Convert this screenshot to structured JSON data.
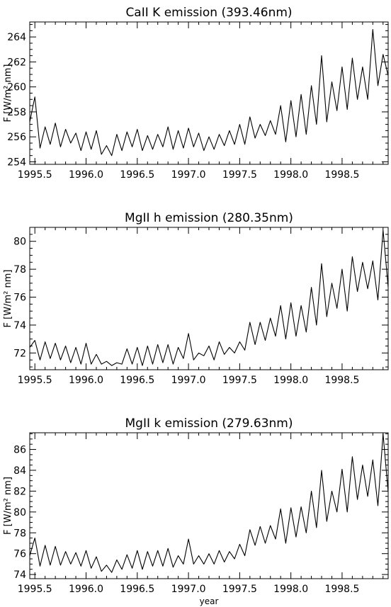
{
  "chart_data": [
    {
      "type": "line",
      "title": "CaII K  emission (393.46nm)",
      "xlabel": "",
      "ylabel": "F [W/m² nm]",
      "xlim": [
        1995.45,
        1998.95
      ],
      "ylim": [
        253.8,
        265.2
      ],
      "x_ticks": [
        "1995.5",
        "1996.0",
        "1996.5",
        "1997.0",
        "1997.5",
        "1998.0",
        "1998.5"
      ],
      "y_ticks": [
        "254",
        "256",
        "258",
        "260",
        "262",
        "264"
      ],
      "series": [
        {
          "x": [
            1995.45,
            1995.5,
            1995.55,
            1995.6,
            1995.65,
            1995.7,
            1995.75,
            1995.8,
            1995.85,
            1995.9,
            1995.95,
            1996.0,
            1996.05,
            1996.1,
            1996.15,
            1996.2,
            1996.25,
            1996.3,
            1996.35,
            1996.4,
            1996.45,
            1996.5,
            1996.55,
            1996.6,
            1996.65,
            1996.7,
            1996.75,
            1996.8,
            1996.85,
            1996.9,
            1996.95,
            1997.0,
            1997.05,
            1997.1,
            1997.15,
            1997.2,
            1997.25,
            1997.3,
            1997.35,
            1997.4,
            1997.45,
            1997.5,
            1997.55,
            1997.6,
            1997.65,
            1997.7,
            1997.75,
            1997.8,
            1997.85,
            1997.9,
            1997.95,
            1998.0,
            1998.05,
            1998.1,
            1998.15,
            1998.2,
            1998.25,
            1998.3,
            1998.35,
            1998.4,
            1998.45,
            1998.5,
            1998.55,
            1998.6,
            1998.65,
            1998.7,
            1998.75,
            1998.8,
            1998.85,
            1998.9,
            1998.95
          ],
          "values": [
            257.2,
            259.2,
            255.1,
            256.8,
            255.4,
            257.1,
            255.2,
            256.6,
            255.5,
            256.3,
            254.9,
            256.4,
            255.0,
            256.5,
            254.6,
            255.3,
            254.5,
            256.2,
            254.9,
            256.4,
            255.2,
            256.6,
            254.9,
            256.1,
            255.0,
            256.2,
            255.2,
            256.8,
            255.0,
            256.5,
            255.1,
            256.7,
            255.2,
            256.3,
            254.9,
            256.0,
            255.0,
            256.2,
            255.3,
            256.5,
            255.4,
            257.0,
            255.4,
            257.6,
            255.9,
            257.0,
            256.1,
            257.3,
            256.2,
            258.5,
            255.6,
            258.9,
            256.0,
            259.4,
            256.2,
            260.1,
            257.0,
            262.5,
            257.2,
            260.4,
            258.1,
            261.6,
            258.2,
            262.3,
            259.0,
            261.6,
            259.0,
            264.6,
            260.1,
            262.6,
            260.9
          ]
        }
      ]
    },
    {
      "type": "line",
      "title": "MgII h  emission (280.35nm)",
      "xlabel": "",
      "ylabel": "F [W/m² nm]",
      "xlim": [
        1995.45,
        1998.95
      ],
      "ylim": [
        70.8,
        81.0
      ],
      "x_ticks": [
        "1995.5",
        "1996.0",
        "1996.5",
        "1997.0",
        "1997.5",
        "1998.0",
        "1998.5"
      ],
      "y_ticks": [
        "72",
        "74",
        "76",
        "78",
        "80"
      ],
      "series": [
        {
          "x": [
            1995.45,
            1995.5,
            1995.55,
            1995.6,
            1995.65,
            1995.7,
            1995.75,
            1995.8,
            1995.85,
            1995.9,
            1995.95,
            1996.0,
            1996.05,
            1996.1,
            1996.15,
            1996.2,
            1996.25,
            1996.3,
            1996.35,
            1996.4,
            1996.45,
            1996.5,
            1996.55,
            1996.6,
            1996.65,
            1996.7,
            1996.75,
            1996.8,
            1996.85,
            1996.9,
            1996.95,
            1997.0,
            1997.05,
            1997.1,
            1997.15,
            1997.2,
            1997.25,
            1997.3,
            1997.35,
            1997.4,
            1997.45,
            1997.5,
            1997.55,
            1997.6,
            1997.65,
            1997.7,
            1997.75,
            1997.8,
            1997.85,
            1997.9,
            1997.95,
            1998.0,
            1998.05,
            1998.1,
            1998.15,
            1998.2,
            1998.25,
            1998.3,
            1998.35,
            1998.4,
            1998.45,
            1998.5,
            1998.55,
            1998.6,
            1998.65,
            1998.7,
            1998.75,
            1998.8,
            1998.85,
            1998.9,
            1998.95
          ],
          "values": [
            72.4,
            72.9,
            71.5,
            72.8,
            71.6,
            72.7,
            71.5,
            72.5,
            71.3,
            72.4,
            71.2,
            72.7,
            71.2,
            71.9,
            71.2,
            71.4,
            71.1,
            71.3,
            71.2,
            72.3,
            71.2,
            72.4,
            71.1,
            72.5,
            71.2,
            72.6,
            71.3,
            72.6,
            71.2,
            72.4,
            71.6,
            73.4,
            71.5,
            72.0,
            71.8,
            72.5,
            71.5,
            72.8,
            71.9,
            72.4,
            72.0,
            72.8,
            72.2,
            74.2,
            72.6,
            74.2,
            72.9,
            74.5,
            73.2,
            75.4,
            73.0,
            75.6,
            73.2,
            75.4,
            73.5,
            76.7,
            74.0,
            78.4,
            74.6,
            77.0,
            75.2,
            78.0,
            75.0,
            78.9,
            76.4,
            78.5,
            76.6,
            78.6,
            75.8,
            80.8,
            76.7
          ]
        }
      ]
    },
    {
      "type": "line",
      "title": "MgII k  emission (279.63nm)",
      "xlabel": "year",
      "ylabel": "F [W/m² nm]",
      "xlim": [
        1995.45,
        1998.95
      ],
      "ylim": [
        73.6,
        87.6
      ],
      "x_ticks": [
        "1995.5",
        "1996.0",
        "1996.5",
        "1997.0",
        "1997.5",
        "1998.0",
        "1998.5"
      ],
      "y_ticks": [
        "74",
        "76",
        "78",
        "80",
        "82",
        "84",
        "86"
      ],
      "series": [
        {
          "x": [
            1995.45,
            1995.5,
            1995.55,
            1995.6,
            1995.65,
            1995.7,
            1995.75,
            1995.8,
            1995.85,
            1995.9,
            1995.95,
            1996.0,
            1996.05,
            1996.1,
            1996.15,
            1996.2,
            1996.25,
            1996.3,
            1996.35,
            1996.4,
            1996.45,
            1996.5,
            1996.55,
            1996.6,
            1996.65,
            1996.7,
            1996.75,
            1996.8,
            1996.85,
            1996.9,
            1996.95,
            1997.0,
            1997.05,
            1997.1,
            1997.15,
            1997.2,
            1997.25,
            1997.3,
            1997.35,
            1997.4,
            1997.45,
            1997.5,
            1997.55,
            1997.6,
            1997.65,
            1997.7,
            1997.75,
            1997.8,
            1997.85,
            1997.9,
            1997.95,
            1998.0,
            1998.05,
            1998.1,
            1998.15,
            1998.2,
            1998.25,
            1998.3,
            1998.35,
            1998.4,
            1998.45,
            1998.5,
            1998.55,
            1998.6,
            1998.65,
            1998.7,
            1998.75,
            1998.8,
            1998.85,
            1998.9,
            1998.95
          ],
          "values": [
            75.8,
            77.5,
            74.8,
            76.8,
            74.9,
            76.7,
            74.9,
            76.2,
            75.0,
            76.1,
            74.8,
            76.3,
            74.6,
            75.7,
            74.3,
            74.9,
            74.2,
            75.4,
            74.5,
            75.9,
            74.6,
            76.3,
            74.5,
            76.2,
            74.8,
            76.3,
            74.8,
            76.5,
            74.7,
            75.8,
            75.0,
            77.4,
            75.0,
            75.8,
            75.0,
            76.0,
            75.0,
            76.3,
            75.2,
            76.2,
            75.5,
            76.9,
            75.8,
            78.3,
            76.8,
            78.6,
            77.0,
            78.7,
            77.4,
            80.3,
            77.0,
            80.4,
            77.6,
            80.5,
            78.0,
            82.0,
            78.5,
            84.0,
            79.1,
            82.0,
            80.0,
            84.1,
            80.0,
            85.3,
            81.2,
            84.5,
            81.5,
            85.0,
            80.6,
            87.5,
            81.9
          ]
        }
      ]
    }
  ]
}
